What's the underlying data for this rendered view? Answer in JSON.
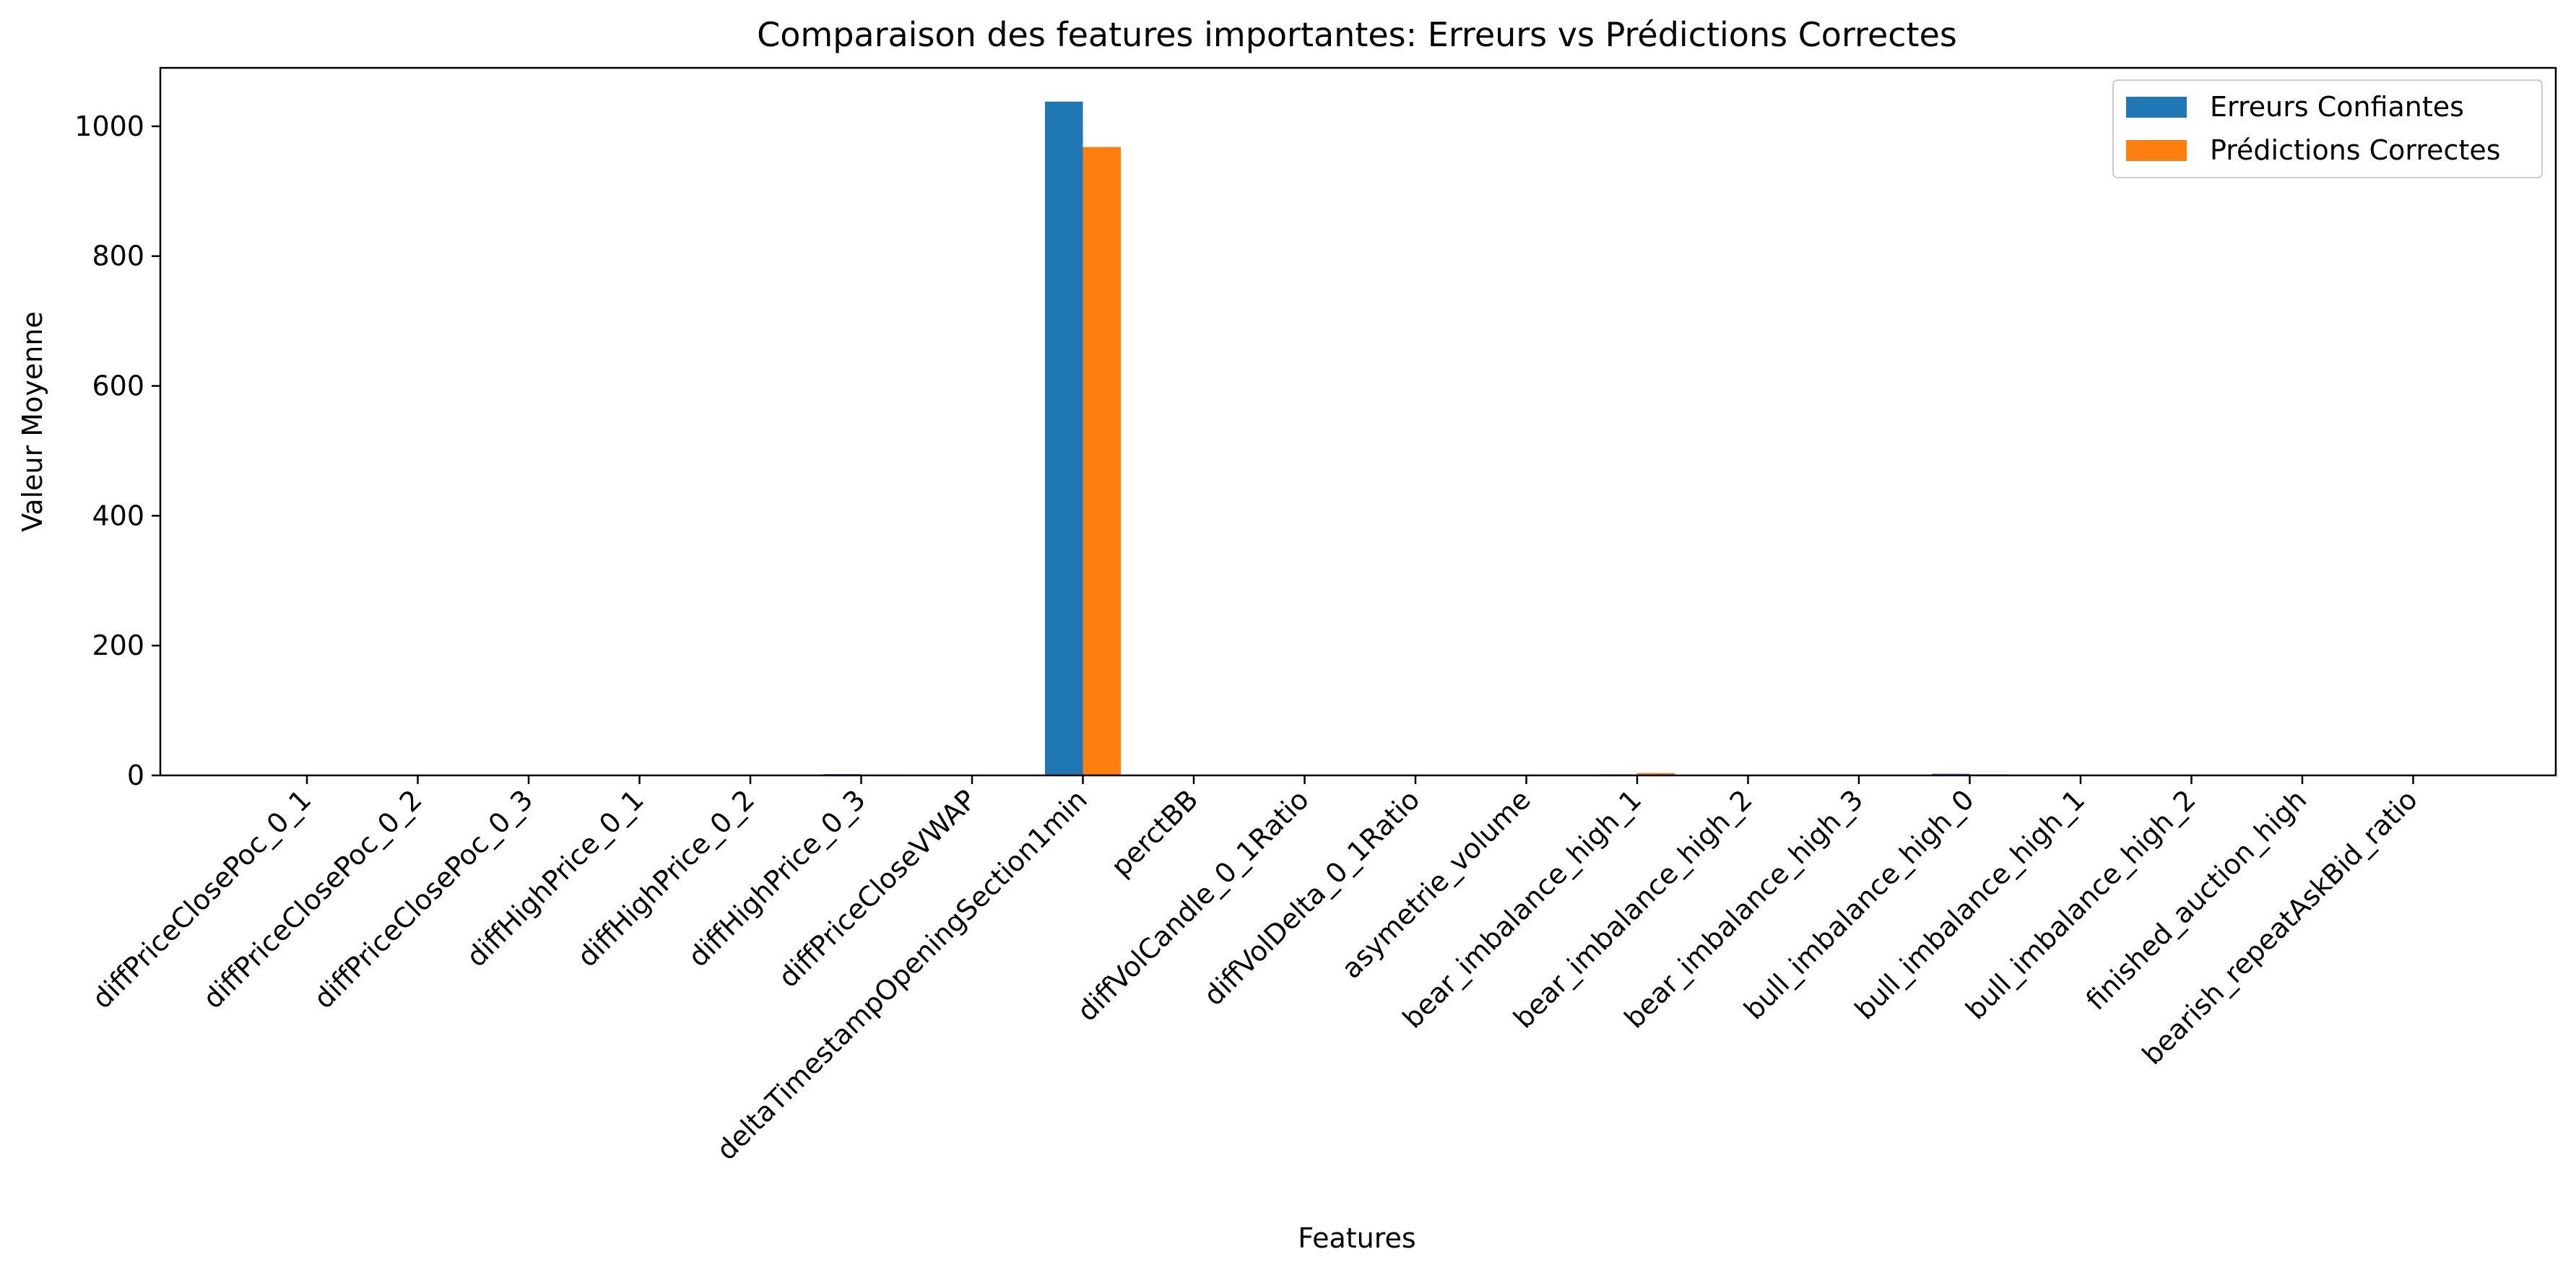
{
  "chart_data": {
    "type": "bar",
    "title": "Comparaison des features importantes: Erreurs vs Prédictions Correctes",
    "xlabel": "Features",
    "ylabel": "Valeur Moyenne",
    "ylim": [
      0,
      1090
    ],
    "yticks": [
      0,
      200,
      400,
      600,
      800,
      1000
    ],
    "grid": false,
    "legend_position": "top-right",
    "categories": [
      "diffPriceClosePoc_0_1",
      "diffPriceClosePoc_0_2",
      "diffPriceClosePoc_0_3",
      "diffHighPrice_0_1",
      "diffHighPrice_0_2",
      "diffHighPrice_0_3",
      "diffPriceCloseVWAP",
      "deltaTimestampOpeningSection1min",
      "perctBB",
      "diffVolCandle_0_1Ratio",
      "diffVolDelta_0_1Ratio",
      "asymetrie_volume",
      "bear_imbalance_high_1",
      "bear_imbalance_high_2",
      "bear_imbalance_high_3",
      "bull_imbalance_high_0",
      "bull_imbalance_high_1",
      "bull_imbalance_high_2",
      "finished_auction_high",
      "bearish_repeatAskBid_ratio"
    ],
    "series": [
      {
        "name": "Erreurs Confiantes",
        "color": "#1f77b4",
        "values": [
          0.5,
          0.6,
          0.7,
          0.4,
          0.6,
          2.0,
          0.2,
          1038,
          0.5,
          0.4,
          0.3,
          0.2,
          1.5,
          0.8,
          0.5,
          2.5,
          0.7,
          0.5,
          0.2,
          0.5
        ]
      },
      {
        "name": "Prédictions Correctes",
        "color": "#ff7f0e",
        "values": [
          0.4,
          0.5,
          0.6,
          0.3,
          0.5,
          1.2,
          0.2,
          968,
          0.5,
          0.4,
          0.3,
          0.2,
          3.5,
          0.9,
          0.6,
          1.5,
          0.8,
          0.6,
          0.2,
          0.5
        ]
      }
    ]
  }
}
